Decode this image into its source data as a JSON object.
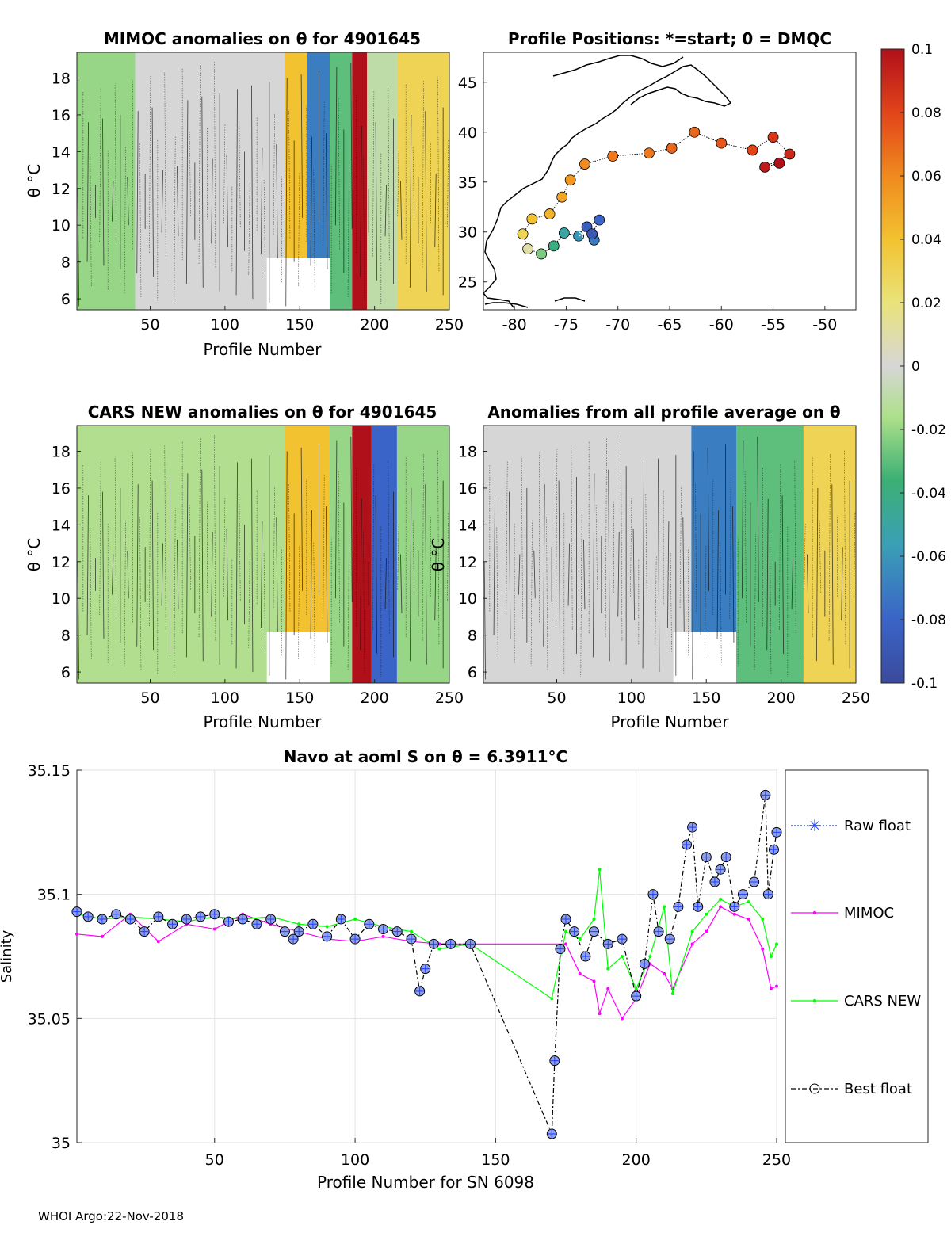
{
  "footer": "WHOI Argo:22-Nov-2018",
  "colors": {
    "raw": "#1f3fff",
    "mimoc": "#ff00ff",
    "cars": "#00ff00",
    "best": "#000000",
    "marker_fill": "#8f9fe8"
  },
  "chart_data": [
    {
      "id": "mimoc_heatmap",
      "type": "heatmap",
      "title": "MIMOC anomalies on θ  for 4901645",
      "xlabel": "Profile Number",
      "ylabel": "θ °C",
      "xlim": [
        1,
        250
      ],
      "ylim": [
        5.4,
        19.4
      ],
      "xticks": [
        "50",
        "100",
        "150",
        "200",
        "250"
      ],
      "yticks": [
        "6",
        "8",
        "10",
        "12",
        "14",
        "16",
        "18"
      ],
      "bands": [
        {
          "x": [
            1,
            40
          ],
          "value": -0.02
        },
        {
          "x": [
            40,
            140
          ],
          "value": 0.0
        },
        {
          "x": [
            140,
            155
          ],
          "value": 0.04
        },
        {
          "x": [
            155,
            170
          ],
          "value": -0.07
        },
        {
          "x": [
            170,
            185
          ],
          "value": -0.03
        },
        {
          "x": [
            185,
            195
          ],
          "value": 0.1
        },
        {
          "x": [
            195,
            215
          ],
          "value": -0.01
        },
        {
          "x": [
            215,
            250
          ],
          "value": 0.03
        }
      ]
    },
    {
      "id": "positions_map",
      "type": "scatter",
      "title": "Profile Positions: *=start; 0 = DMQC",
      "xlim": [
        -83,
        -47
      ],
      "ylim": [
        22.2,
        48
      ],
      "xticks": [
        "-80",
        "-75",
        "-70",
        "-65",
        "-60",
        "-55",
        "-50"
      ],
      "yticks": [
        "25",
        "30",
        "35",
        "40",
        "45"
      ],
      "track": [
        {
          "lon": -72.3,
          "lat": 29.2,
          "v": -0.07
        },
        {
          "lon": -73.0,
          "lat": 30.5,
          "v": -0.085
        },
        {
          "lon": -71.8,
          "lat": 31.2,
          "v": -0.08
        },
        {
          "lon": -72.5,
          "lat": 29.8,
          "v": -0.09
        },
        {
          "lon": -73.8,
          "lat": 29.6,
          "v": -0.06
        },
        {
          "lon": -75.2,
          "lat": 29.9,
          "v": -0.05
        },
        {
          "lon": -76.2,
          "lat": 28.6,
          "v": -0.04
        },
        {
          "lon": -77.4,
          "lat": 27.8,
          "v": -0.025
        },
        {
          "lon": -78.7,
          "lat": 28.3,
          "v": 0.01
        },
        {
          "lon": -79.2,
          "lat": 29.8,
          "v": 0.03
        },
        {
          "lon": -78.3,
          "lat": 31.3,
          "v": 0.04
        },
        {
          "lon": -76.6,
          "lat": 31.8,
          "v": 0.045
        },
        {
          "lon": -75.4,
          "lat": 33.5,
          "v": 0.05
        },
        {
          "lon": -74.6,
          "lat": 35.2,
          "v": 0.055
        },
        {
          "lon": -73.2,
          "lat": 36.8,
          "v": 0.06
        },
        {
          "lon": -70.5,
          "lat": 37.6,
          "v": 0.065
        },
        {
          "lon": -67.0,
          "lat": 37.9,
          "v": 0.065
        },
        {
          "lon": -64.8,
          "lat": 38.4,
          "v": 0.07
        },
        {
          "lon": -62.6,
          "lat": 40.0,
          "v": 0.07
        },
        {
          "lon": -60.0,
          "lat": 38.9,
          "v": 0.075
        },
        {
          "lon": -57.0,
          "lat": 38.2,
          "v": 0.08
        },
        {
          "lon": -55.0,
          "lat": 39.5,
          "v": 0.085
        },
        {
          "lon": -53.4,
          "lat": 37.8,
          "v": 0.09
        },
        {
          "lon": -55.8,
          "lat": 36.5,
          "v": 0.095
        },
        {
          "lon": -54.4,
          "lat": 36.9,
          "v": 0.1
        }
      ]
    },
    {
      "id": "cars_heatmap",
      "type": "heatmap",
      "title": "CARS NEW anomalies on θ for 4901645",
      "xlabel": "Profile Number",
      "ylabel": "θ °C",
      "xlim": [
        1,
        250
      ],
      "ylim": [
        5.4,
        19.4
      ],
      "xticks": [
        "50",
        "100",
        "150",
        "200",
        "250"
      ],
      "yticks": [
        "6",
        "8",
        "10",
        "12",
        "14",
        "16",
        "18"
      ],
      "bands": [
        {
          "x": [
            1,
            140
          ],
          "value": -0.015
        },
        {
          "x": [
            140,
            170
          ],
          "value": 0.04
        },
        {
          "x": [
            170,
            185
          ],
          "value": -0.02
        },
        {
          "x": [
            185,
            198
          ],
          "value": 0.1
        },
        {
          "x": [
            198,
            215
          ],
          "value": -0.08
        },
        {
          "x": [
            215,
            250
          ],
          "value": -0.02
        }
      ]
    },
    {
      "id": "avg_heatmap",
      "type": "heatmap",
      "title": "Anomalies from all profile average on θ",
      "xlabel": "Profile Number",
      "ylabel": "θ °C",
      "xlim": [
        1,
        250
      ],
      "ylim": [
        5.4,
        19.4
      ],
      "xticks": [
        "50",
        "100",
        "150",
        "200",
        "250"
      ],
      "yticks": [
        "6",
        "8",
        "10",
        "12",
        "14",
        "16",
        "18"
      ],
      "bands": [
        {
          "x": [
            1,
            140
          ],
          "value": 0.0
        },
        {
          "x": [
            140,
            170
          ],
          "value": -0.07
        },
        {
          "x": [
            170,
            215
          ],
          "value": -0.03
        },
        {
          "x": [
            215,
            250
          ],
          "value": 0.03
        }
      ]
    },
    {
      "id": "colorbar",
      "type": "colorbar",
      "range": [
        -0.1,
        0.1
      ],
      "ticks": [
        "0.1",
        "0.08",
        "0.06",
        "0.04",
        "0.02",
        "0",
        "-0.02",
        "-0.04",
        "-0.06",
        "-0.08",
        "-0.1"
      ]
    },
    {
      "id": "salinity_line",
      "type": "line",
      "title": "Navo at aoml S on θ = 6.3911°C",
      "xlabel": "Profile Number for SN 6098",
      "ylabel": "Salinity",
      "xlim": [
        1,
        250
      ],
      "ylim": [
        35,
        35.15
      ],
      "xticks": [
        "50",
        "100",
        "150",
        "200",
        "250"
      ],
      "yticks": [
        "35",
        "35.05",
        "35.1",
        "35.15"
      ],
      "legend": [
        "Raw float",
        "MIMOC",
        "CARS NEW",
        "Best float"
      ],
      "series": [
        {
          "name": "MIMOC",
          "x": [
            1,
            10,
            20,
            30,
            40,
            50,
            60,
            70,
            80,
            90,
            100,
            110,
            120,
            130,
            175,
            180,
            185,
            187,
            190,
            195,
            200,
            205,
            210,
            213,
            220,
            225,
            230,
            235,
            240,
            245,
            248,
            250
          ],
          "y": [
            35.084,
            35.083,
            35.092,
            35.081,
            35.088,
            35.086,
            35.092,
            35.088,
            35.085,
            35.082,
            35.081,
            35.083,
            35.081,
            35.08,
            35.08,
            35.068,
            35.065,
            35.052,
            35.062,
            35.05,
            35.058,
            35.072,
            35.068,
            35.062,
            35.08,
            35.085,
            35.095,
            35.092,
            35.09,
            35.078,
            35.062,
            35.063
          ]
        },
        {
          "name": "CARS NEW",
          "x": [
            1,
            10,
            20,
            30,
            40,
            50,
            60,
            70,
            80,
            90,
            100,
            110,
            120,
            130,
            141,
            170,
            175,
            180,
            185,
            187,
            190,
            195,
            200,
            205,
            210,
            213,
            220,
            225,
            230,
            235,
            240,
            245,
            248,
            250
          ],
          "y": [
            35.092,
            35.09,
            35.091,
            35.09,
            35.089,
            35.091,
            35.09,
            35.091,
            35.088,
            35.087,
            35.09,
            35.087,
            35.085,
            35.078,
            35.08,
            35.058,
            35.085,
            35.082,
            35.09,
            35.11,
            35.07,
            35.075,
            35.062,
            35.075,
            35.095,
            35.06,
            35.085,
            35.092,
            35.098,
            35.095,
            35.097,
            35.09,
            35.075,
            35.08
          ]
        },
        {
          "name": "Best float",
          "x": [
            1,
            5,
            10,
            15,
            20,
            25,
            30,
            35,
            40,
            45,
            50,
            55,
            60,
            65,
            70,
            75,
            78,
            80,
            85,
            90,
            95,
            100,
            105,
            110,
            115,
            120,
            123,
            125,
            128,
            134,
            141,
            170,
            171,
            173,
            175,
            178,
            182,
            185,
            190,
            195,
            200,
            203,
            206,
            208,
            212,
            215,
            218,
            220,
            222,
            225,
            228,
            230,
            232,
            235,
            238,
            242,
            246,
            247,
            249,
            250
          ],
          "y": [
            35.093,
            35.091,
            35.09,
            35.092,
            35.09,
            35.085,
            35.091,
            35.088,
            35.09,
            35.091,
            35.092,
            35.089,
            35.09,
            35.088,
            35.09,
            35.085,
            35.082,
            35.085,
            35.088,
            35.083,
            35.09,
            35.082,
            35.088,
            35.086,
            35.085,
            35.082,
            35.061,
            35.07,
            35.08,
            35.08,
            35.08,
            35.0035,
            35.033,
            35.078,
            35.09,
            35.085,
            35.075,
            35.085,
            35.08,
            35.082,
            35.059,
            35.072,
            35.1,
            35.085,
            35.082,
            35.095,
            35.12,
            35.127,
            35.095,
            35.115,
            35.105,
            35.11,
            35.115,
            35.095,
            35.1,
            35.105,
            35.14,
            35.1,
            35.118,
            35.125
          ]
        }
      ]
    }
  ]
}
